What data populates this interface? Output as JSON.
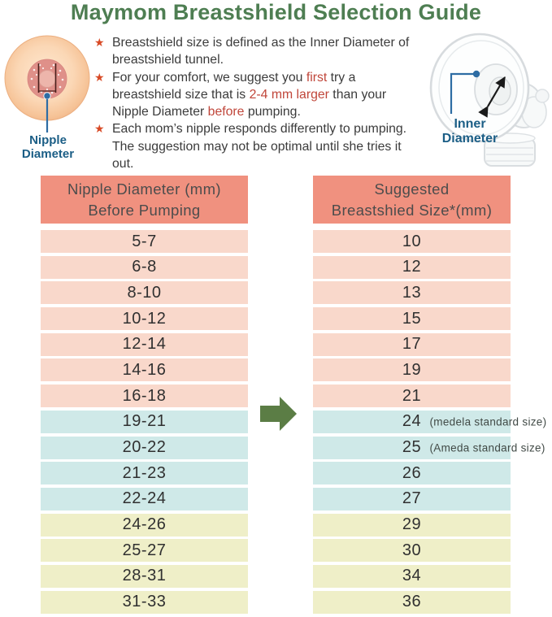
{
  "title": "Maymom Breastshield Selection Guide",
  "colors": {
    "title_green": "#4e7e52",
    "arrow_green": "#5b7d45",
    "star_red": "#d84a26",
    "highlight_red": "#c0463a",
    "label_blue": "#1b5e86",
    "header_salmon": "#f0917f",
    "row_pink": "#f9d8cb",
    "row_blue": "#cfe9e8",
    "row_yellow": "#efefc8",
    "text_dark": "#3b3b3b"
  },
  "left_illustration": {
    "label_line1": "Nipple",
    "label_line2": "Diameter"
  },
  "right_illustration": {
    "label_line1": "Inner",
    "label_line2": "Diameter"
  },
  "bullets": {
    "b1": "Breastshield size is defined as the Inner Diameter of breastshield tunnel.",
    "b2_pre": "For your comfort, we suggest you ",
    "b2_red1": "first",
    "b2_mid1": " try a breastshield size that is ",
    "b2_red2": "2-4 mm larger",
    "b2_mid2": " than your Nipple Diameter ",
    "b2_red3": "before",
    "b2_post": " pumping.",
    "b3": "Each mom’s nipple responds differently to pumping. The suggestion may not be optimal until she tries it out.",
    "star_glyph": "★"
  },
  "table": {
    "left_header": [
      "Nipple Diameter (mm)",
      "Before Pumping"
    ],
    "right_header": [
      "Suggested",
      "Breastshied Size*(mm)"
    ],
    "rows": [
      {
        "nipple": "5-7",
        "size": "10",
        "note": "",
        "band": "row_pink"
      },
      {
        "nipple": "6-8",
        "size": "12",
        "note": "",
        "band": "row_pink"
      },
      {
        "nipple": "8-10",
        "size": "13",
        "note": "",
        "band": "row_pink"
      },
      {
        "nipple": "10-12",
        "size": "15",
        "note": "",
        "band": "row_pink"
      },
      {
        "nipple": "12-14",
        "size": "17",
        "note": "",
        "band": "row_pink"
      },
      {
        "nipple": "14-16",
        "size": "19",
        "note": "",
        "band": "row_pink"
      },
      {
        "nipple": "16-18",
        "size": "21",
        "note": "",
        "band": "row_pink"
      },
      {
        "nipple": "19-21",
        "size": "24",
        "note": "(medela standard size)",
        "band": "row_blue"
      },
      {
        "nipple": "20-22",
        "size": "25",
        "note": "(Ameda standard size)",
        "band": "row_blue"
      },
      {
        "nipple": "21-23",
        "size": "26",
        "note": "",
        "band": "row_blue"
      },
      {
        "nipple": "22-24",
        "size": "27",
        "note": "",
        "band": "row_blue"
      },
      {
        "nipple": "24-26",
        "size": "29",
        "note": "",
        "band": "row_yellow"
      },
      {
        "nipple": "25-27",
        "size": "30",
        "note": "",
        "band": "row_yellow"
      },
      {
        "nipple": "28-31",
        "size": "34",
        "note": "",
        "band": "row_yellow"
      },
      {
        "nipple": "31-33",
        "size": "36",
        "note": "",
        "band": "row_yellow"
      }
    ]
  }
}
